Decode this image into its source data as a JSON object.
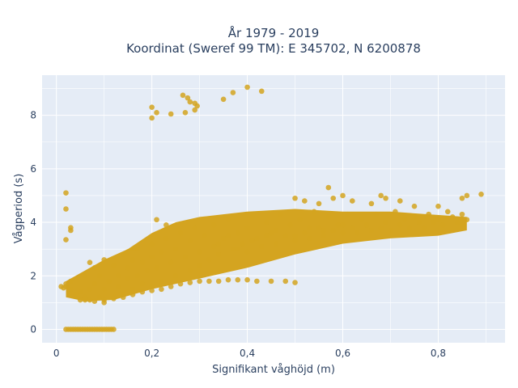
{
  "chart_data": {
    "type": "scatter",
    "title": "År 1979 - 2019",
    "subtitle": "Koordinat (Sweref 99 TM): E 345702, N 6200878",
    "xlabel": "Signifikant våghöjd (m)",
    "ylabel": "Vågperiod (s)",
    "xlim": [
      -0.03,
      0.94
    ],
    "ylim": [
      -0.5,
      9.5
    ],
    "xticks": [
      0,
      0.2,
      0.4,
      0.6,
      0.8
    ],
    "xtick_labels": [
      "0",
      "0,2",
      "0,4",
      "0,6",
      "0,8"
    ],
    "yticks": [
      0,
      2,
      4,
      6,
      8
    ],
    "ytick_labels": [
      "0",
      "2",
      "4",
      "6",
      "8"
    ],
    "grid": true,
    "legend": "none",
    "colors": {
      "marker": "#d4a420",
      "plot_bg": "#e5ecf6",
      "grid": "#ffffff"
    },
    "series": [
      {
        "points": [
          [
            0.02,
            0
          ],
          [
            0.025,
            0
          ],
          [
            0.03,
            0
          ],
          [
            0.035,
            0
          ],
          [
            0.04,
            0
          ],
          [
            0.045,
            0
          ],
          [
            0.05,
            0
          ],
          [
            0.055,
            0
          ],
          [
            0.06,
            0
          ],
          [
            0.065,
            0
          ],
          [
            0.07,
            0
          ],
          [
            0.075,
            0
          ],
          [
            0.08,
            0
          ],
          [
            0.085,
            0
          ],
          [
            0.09,
            0
          ],
          [
            0.095,
            0
          ],
          [
            0.1,
            0
          ],
          [
            0.105,
            0
          ],
          [
            0.11,
            0
          ],
          [
            0.115,
            0
          ],
          [
            0.12,
            0
          ],
          [
            0.01,
            1.6
          ],
          [
            0.015,
            1.55
          ],
          [
            0.02,
            1.6
          ],
          [
            0.02,
            1.7
          ],
          [
            0.03,
            1.5
          ],
          [
            0.03,
            1.8
          ],
          [
            0.04,
            1.3
          ],
          [
            0.05,
            1.1
          ],
          [
            0.05,
            1.4
          ],
          [
            0.06,
            1.2
          ],
          [
            0.06,
            2.0
          ],
          [
            0.07,
            1.1
          ],
          [
            0.07,
            1.5
          ],
          [
            0.08,
            1.7
          ],
          [
            0.08,
            2.3
          ],
          [
            0.09,
            1.2
          ],
          [
            0.09,
            2.0
          ],
          [
            0.1,
            1.0
          ],
          [
            0.1,
            1.5
          ],
          [
            0.1,
            2.6
          ],
          [
            0.11,
            1.8
          ],
          [
            0.12,
            1.2
          ],
          [
            0.12,
            2.4
          ],
          [
            0.13,
            1.6
          ],
          [
            0.13,
            2.0
          ],
          [
            0.14,
            1.3
          ],
          [
            0.14,
            2.8
          ],
          [
            0.15,
            1.9
          ],
          [
            0.15,
            2.3
          ],
          [
            0.16,
            1.5
          ],
          [
            0.16,
            2.6
          ],
          [
            0.17,
            2.0
          ],
          [
            0.17,
            3.0
          ],
          [
            0.18,
            1.7
          ],
          [
            0.18,
            2.5
          ],
          [
            0.19,
            2.2
          ],
          [
            0.2,
            1.6
          ],
          [
            0.2,
            2.7
          ],
          [
            0.2,
            3.2
          ],
          [
            0.21,
            2.3
          ],
          [
            0.22,
            1.8
          ],
          [
            0.22,
            2.9
          ],
          [
            0.23,
            3.4
          ],
          [
            0.24,
            2.5
          ],
          [
            0.25,
            2.0
          ],
          [
            0.25,
            3.0
          ],
          [
            0.26,
            3.6
          ],
          [
            0.27,
            2.7
          ],
          [
            0.28,
            2.2
          ],
          [
            0.28,
            3.3
          ],
          [
            0.29,
            3.8
          ],
          [
            0.3,
            2.4
          ],
          [
            0.3,
            2.9
          ],
          [
            0.31,
            3.5
          ],
          [
            0.32,
            2.6
          ],
          [
            0.33,
            3.1
          ],
          [
            0.33,
            3.9
          ],
          [
            0.34,
            2.8
          ],
          [
            0.35,
            3.4
          ],
          [
            0.36,
            4.1
          ],
          [
            0.37,
            3.0
          ],
          [
            0.38,
            3.6
          ],
          [
            0.39,
            3.2
          ],
          [
            0.4,
            2.9
          ],
          [
            0.4,
            3.8
          ],
          [
            0.41,
            4.2
          ],
          [
            0.42,
            3.4
          ],
          [
            0.43,
            3.1
          ],
          [
            0.44,
            4.0
          ],
          [
            0.45,
            3.6
          ],
          [
            0.46,
            3.2
          ],
          [
            0.47,
            4.3
          ],
          [
            0.48,
            3.5
          ],
          [
            0.49,
            3.9
          ],
          [
            0.5,
            3.3
          ],
          [
            0.51,
            4.1
          ],
          [
            0.52,
            3.6
          ],
          [
            0.53,
            3.4
          ],
          [
            0.54,
            4.4
          ],
          [
            0.55,
            3.8
          ],
          [
            0.56,
            3.5
          ],
          [
            0.57,
            4.2
          ],
          [
            0.58,
            3.7
          ],
          [
            0.59,
            3.9
          ],
          [
            0.6,
            3.6
          ],
          [
            0.61,
            4.3
          ],
          [
            0.62,
            3.8
          ],
          [
            0.63,
            3.6
          ],
          [
            0.64,
            4.1
          ],
          [
            0.65,
            3.9
          ],
          [
            0.66,
            3.7
          ],
          [
            0.67,
            4.3
          ],
          [
            0.68,
            3.8
          ],
          [
            0.69,
            4.0
          ],
          [
            0.7,
            3.7
          ],
          [
            0.71,
            4.4
          ],
          [
            0.72,
            3.9
          ],
          [
            0.73,
            4.1
          ],
          [
            0.74,
            3.8
          ],
          [
            0.75,
            4.2
          ],
          [
            0.76,
            4.0
          ],
          [
            0.77,
            3.8
          ],
          [
            0.78,
            4.3
          ],
          [
            0.79,
            4.0
          ],
          [
            0.8,
            4.1
          ],
          [
            0.81,
            3.9
          ],
          [
            0.82,
            4.4
          ],
          [
            0.83,
            4.2
          ],
          [
            0.84,
            4.0
          ],
          [
            0.85,
            4.3
          ],
          [
            0.86,
            4.1
          ],
          [
            0.06,
            1.1
          ],
          [
            0.08,
            1.05
          ],
          [
            0.1,
            1.1
          ],
          [
            0.12,
            1.15
          ],
          [
            0.14,
            1.2
          ],
          [
            0.16,
            1.3
          ],
          [
            0.18,
            1.4
          ],
          [
            0.2,
            1.45
          ],
          [
            0.22,
            1.5
          ],
          [
            0.24,
            1.6
          ],
          [
            0.26,
            1.7
          ],
          [
            0.28,
            1.75
          ],
          [
            0.3,
            1.8
          ],
          [
            0.32,
            1.8
          ],
          [
            0.34,
            1.8
          ],
          [
            0.36,
            1.85
          ],
          [
            0.38,
            1.85
          ],
          [
            0.4,
            1.85
          ],
          [
            0.42,
            1.8
          ],
          [
            0.45,
            1.8
          ],
          [
            0.48,
            1.8
          ],
          [
            0.5,
            1.75
          ],
          [
            0.02,
            5.1
          ],
          [
            0.02,
            4.5
          ],
          [
            0.02,
            3.35
          ],
          [
            0.03,
            3.8
          ],
          [
            0.03,
            3.7
          ],
          [
            0.07,
            2.5
          ],
          [
            0.15,
            2.9
          ],
          [
            0.16,
            3.0
          ],
          [
            0.21,
            4.1
          ],
          [
            0.23,
            3.9
          ],
          [
            0.5,
            4.9
          ],
          [
            0.52,
            4.8
          ],
          [
            0.55,
            4.7
          ],
          [
            0.58,
            4.9
          ],
          [
            0.6,
            5.0
          ],
          [
            0.62,
            4.8
          ],
          [
            0.66,
            4.7
          ],
          [
            0.68,
            5.0
          ],
          [
            0.69,
            4.9
          ],
          [
            0.72,
            4.8
          ],
          [
            0.75,
            4.6
          ],
          [
            0.8,
            4.6
          ],
          [
            0.86,
            5.0
          ],
          [
            0.89,
            5.05
          ],
          [
            0.57,
            5.3
          ],
          [
            0.85,
            4.9
          ],
          [
            0.2,
            8.3
          ],
          [
            0.2,
            7.9
          ],
          [
            0.21,
            8.1
          ],
          [
            0.24,
            8.05
          ],
          [
            0.265,
            8.75
          ],
          [
            0.27,
            8.1
          ],
          [
            0.275,
            8.65
          ],
          [
            0.28,
            8.5
          ],
          [
            0.29,
            8.45
          ],
          [
            0.29,
            8.2
          ],
          [
            0.295,
            8.35
          ],
          [
            0.35,
            8.6
          ],
          [
            0.37,
            8.85
          ],
          [
            0.4,
            9.05
          ],
          [
            0.43,
            8.9
          ],
          [
            0.34,
            3.2
          ],
          [
            0.36,
            3.5
          ],
          [
            0.38,
            3.0
          ],
          [
            0.41,
            3.3
          ],
          [
            0.44,
            3.5
          ],
          [
            0.46,
            3.7
          ],
          [
            0.5,
            3.5
          ],
          [
            0.53,
            3.8
          ],
          [
            0.56,
            3.7
          ],
          [
            0.6,
            3.9
          ]
        ]
      }
    ]
  }
}
